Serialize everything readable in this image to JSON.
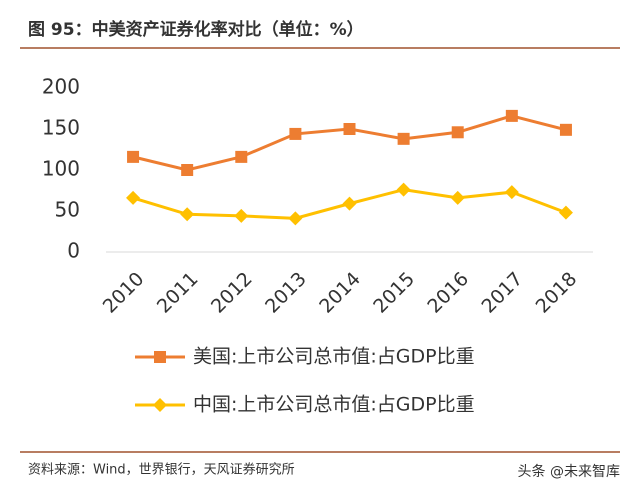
{
  "chart_data": {
    "type": "line",
    "title": "图 95：中美资产证券化率对比（单位：%）",
    "categories": [
      "2010",
      "2011",
      "2012",
      "2013",
      "2014",
      "2015",
      "2016",
      "2017",
      "2018"
    ],
    "series": [
      {
        "name": "美国:上市公司总市值:占GDP比重",
        "color": "#ed7d31",
        "marker": "square",
        "values": [
          116,
          100,
          116,
          144,
          150,
          138,
          146,
          166,
          149
        ]
      },
      {
        "name": "中国:上市公司总市值:占GDP比重",
        "color": "#ffc000",
        "marker": "diamond",
        "values": [
          66,
          46,
          44,
          41,
          59,
          76,
          66,
          73,
          48
        ]
      }
    ],
    "ylim": [
      0,
      200
    ],
    "yticks": [
      0,
      50,
      100,
      150,
      200
    ],
    "grid": false,
    "source": "资料来源：Wind，世界银行，天风证券研究所",
    "watermark": "头条 @未来智库"
  }
}
